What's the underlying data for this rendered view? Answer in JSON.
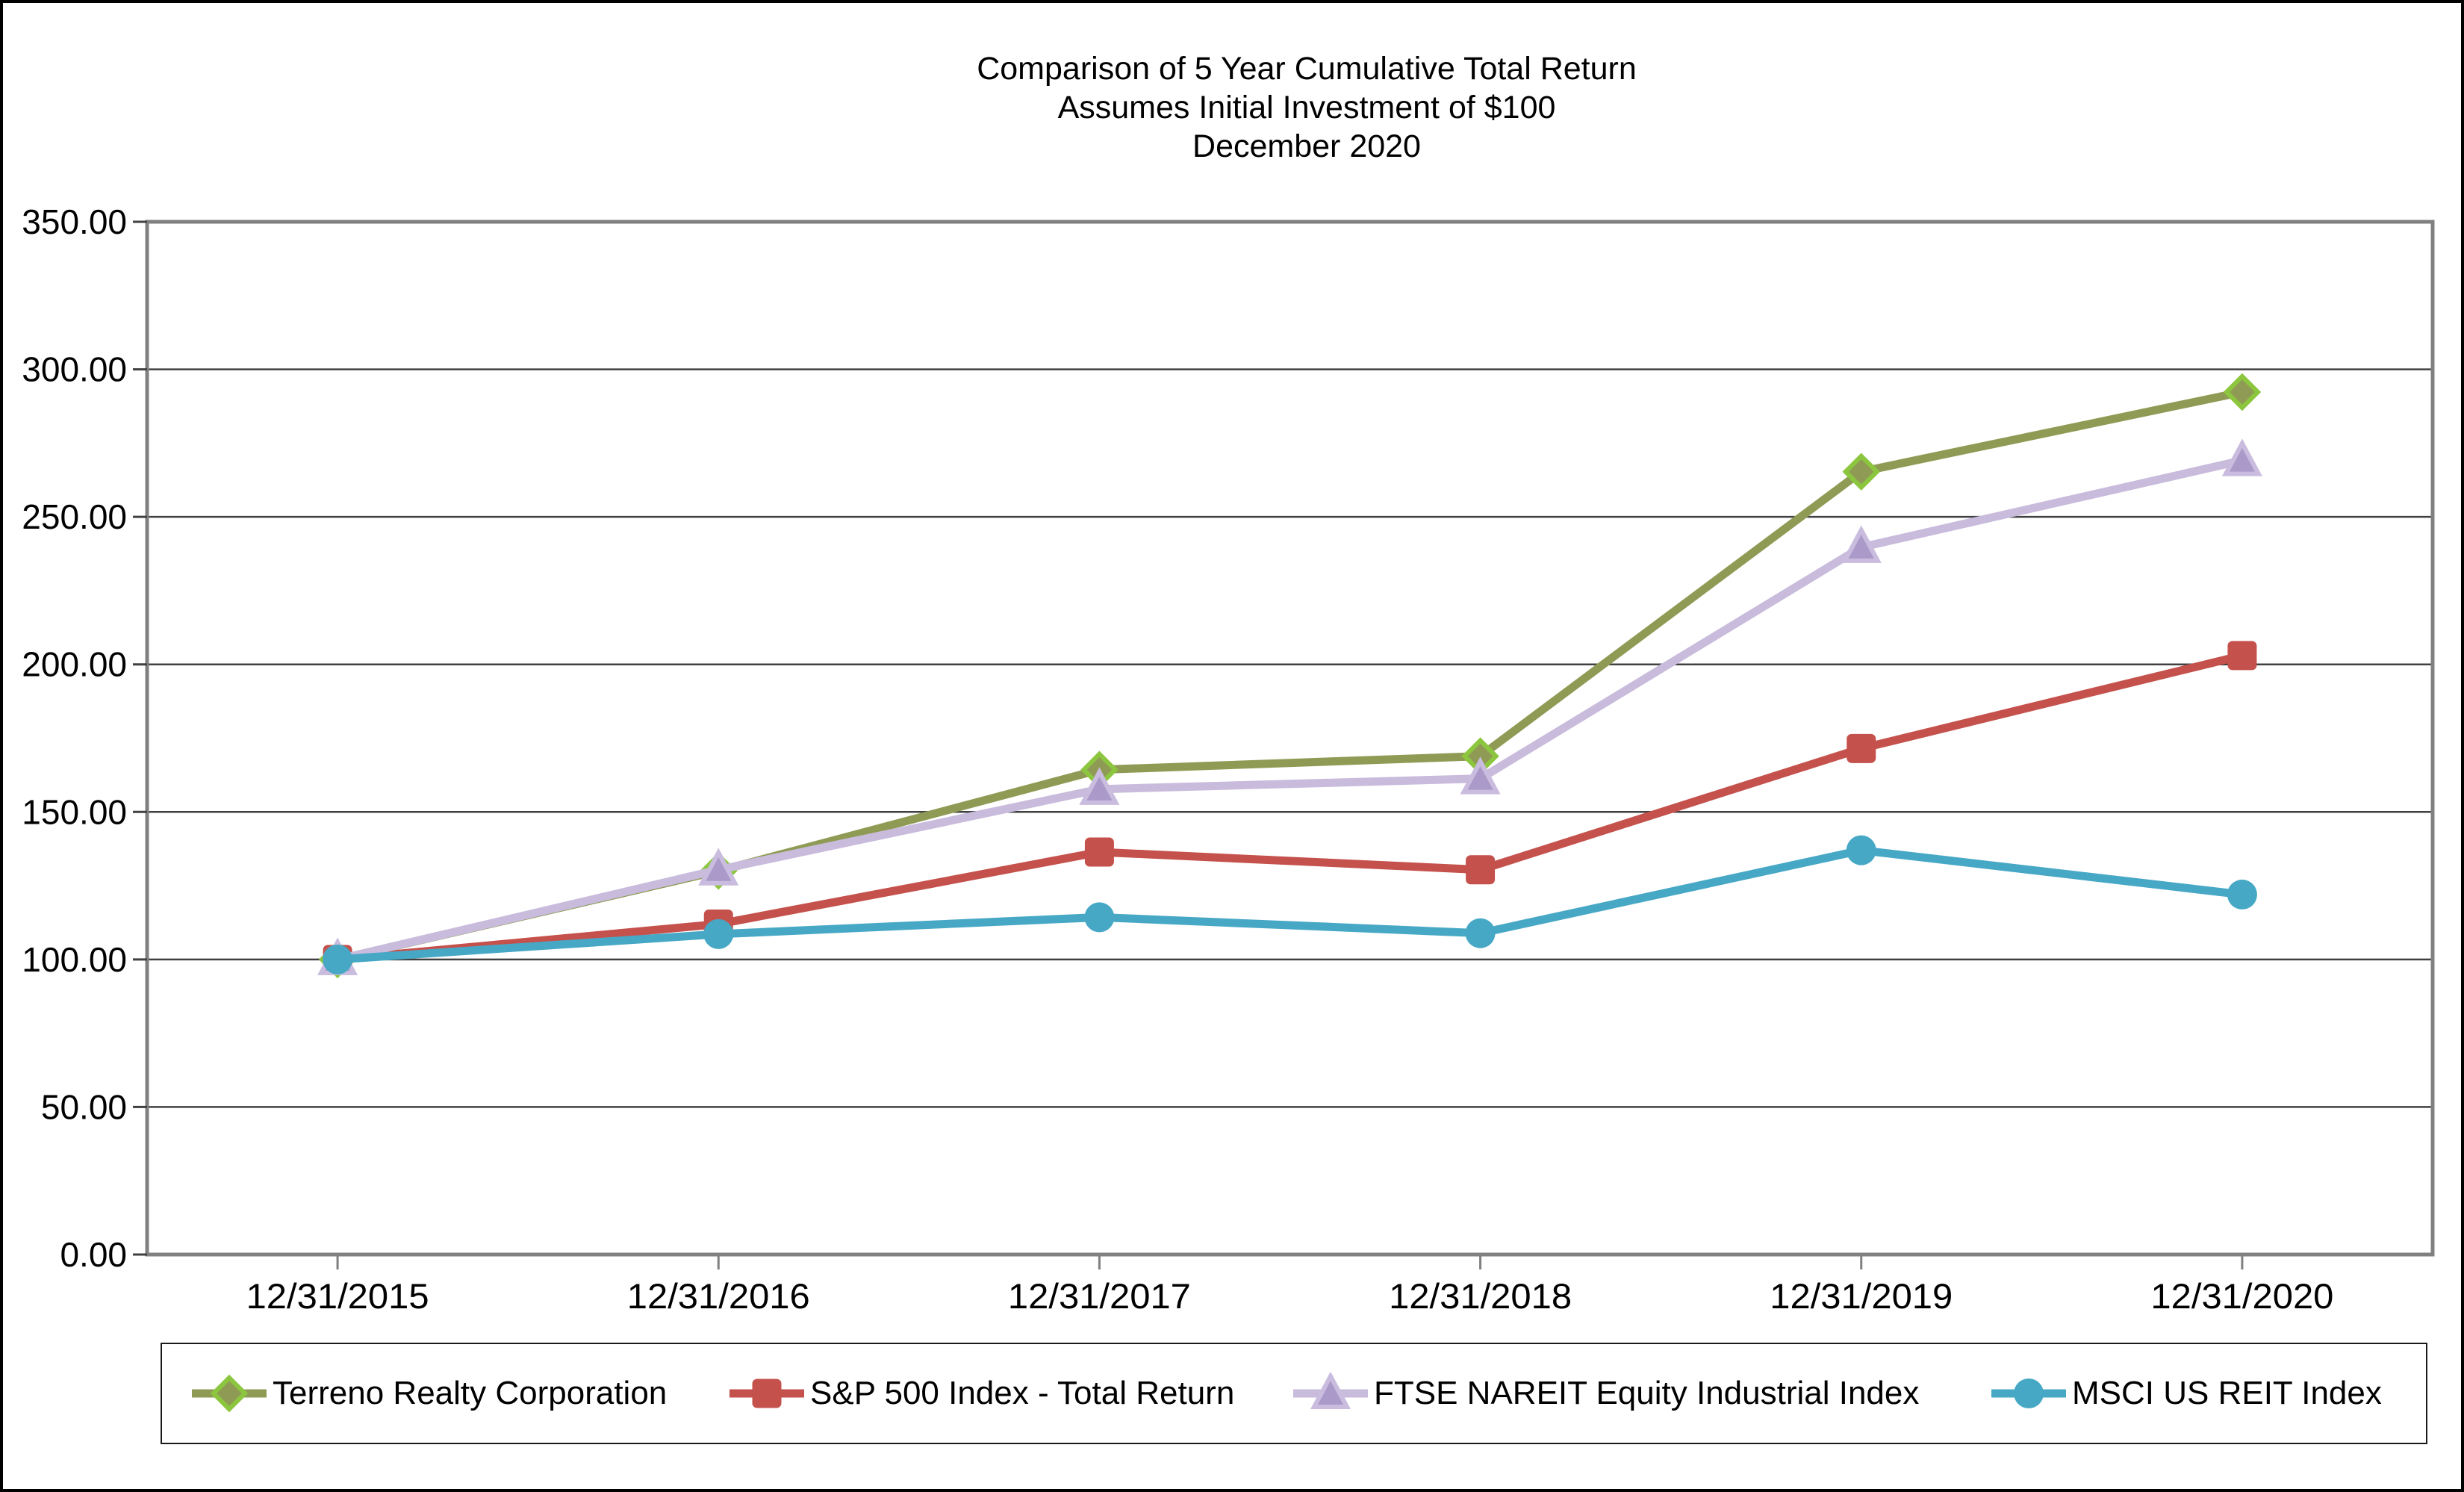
{
  "title": {
    "lines": [
      "Comparison of 5 Year Cumulative Total Return",
      "Assumes Initial Investment of $100",
      "December 2020"
    ]
  },
  "chart_data": {
    "type": "line",
    "title": "Comparison of 5 Year Cumulative Total Return",
    "subtitle": "Assumes Initial Investment of $100",
    "date_label": "December 2020",
    "x": [
      "12/31/2015",
      "12/31/2016",
      "12/31/2017",
      "12/31/2018",
      "12/31/2019",
      "12/31/2020"
    ],
    "ylim": [
      0,
      350
    ],
    "y_tick_step": 50,
    "y_tick_labels": [
      "350.00",
      "300.00",
      "250.00",
      "200.00",
      "150.00",
      "100.00",
      "50.00",
      "0.00"
    ],
    "grid": "horizontal",
    "legend_position": "bottom",
    "series": [
      {
        "name": "Terreno Realty Corporation",
        "marker": "diamond",
        "color": "#8F9B55",
        "marker_fill": "#8F9B55",
        "marker_stroke": "#8CC63E",
        "values": [
          100.0,
          130.0,
          164.3,
          168.9,
          265.3,
          292.3
        ]
      },
      {
        "name": "S&P 500 Index - Total Return",
        "marker": "square",
        "color": "#C5514C",
        "marker_fill": "#C5514C",
        "marker_stroke": "#C5514C",
        "values": [
          100.0,
          112.0,
          136.4,
          130.4,
          171.5,
          203.0
        ]
      },
      {
        "name": "FTSE NAREIT Equity Industrial Index",
        "marker": "triangle",
        "color": "#C8BBDC",
        "marker_fill": "#AB99C9",
        "marker_stroke": "#C9BCDE",
        "values": [
          100.0,
          130.4,
          157.7,
          161.3,
          239.7,
          269.1
        ]
      },
      {
        "name": "MSCI US REIT Index",
        "marker": "circle",
        "color": "#47A8C6",
        "marker_fill": "#47A8C6",
        "marker_stroke": "#47A8C6",
        "values": [
          100.0,
          108.6,
          114.3,
          108.9,
          137.0,
          122.0
        ]
      }
    ],
    "colors": {
      "plot_border": "#808080",
      "gridline": "#404040",
      "axis_text": "#000000",
      "background": "#FFFFFF",
      "outer_border": "#000000",
      "legend_border": "#1A1A1A"
    }
  }
}
